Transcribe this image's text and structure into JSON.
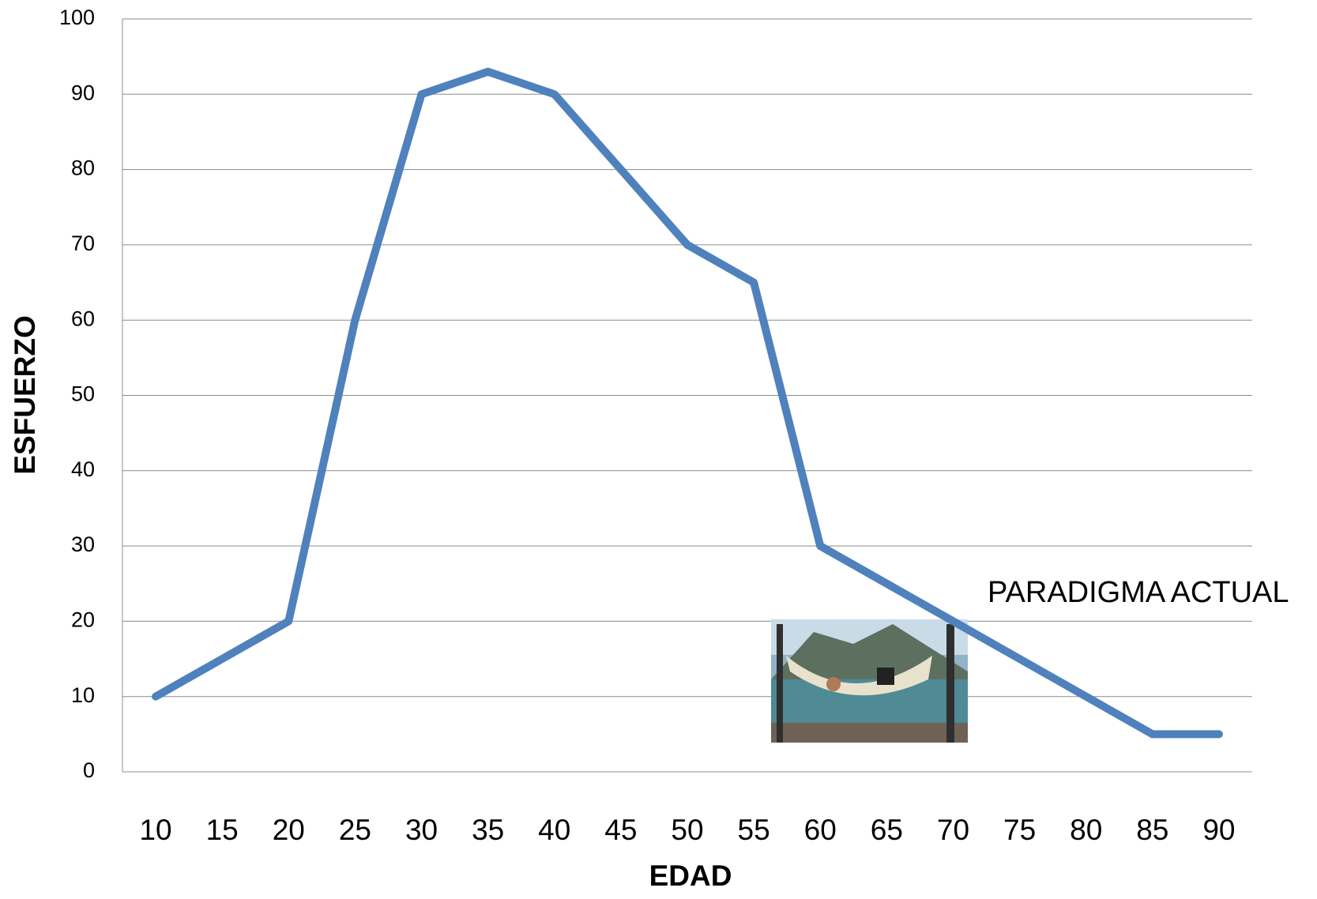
{
  "chart_data": {
    "type": "line",
    "x_label": "EDAD",
    "y_label": "ESFUERZO",
    "annotation": "PARADIGMA ACTUAL",
    "categories": [
      10,
      15,
      20,
      25,
      30,
      35,
      40,
      45,
      50,
      55,
      60,
      65,
      70,
      75,
      80,
      85,
      90
    ],
    "series": [
      {
        "color": "#4f81bd",
        "values": [
          10,
          15,
          20,
          60,
          90,
          93,
          90,
          80,
          70,
          65,
          30,
          25,
          20,
          15,
          10,
          5,
          5
        ]
      }
    ],
    "ylim": [
      0,
      100
    ],
    "yticks": [
      0,
      10,
      20,
      30,
      40,
      50,
      60,
      70,
      80,
      90,
      100
    ],
    "grid": true
  }
}
